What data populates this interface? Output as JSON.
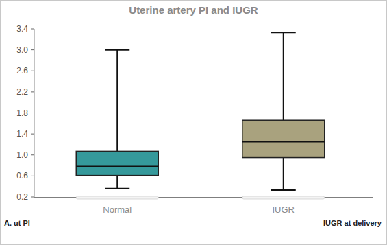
{
  "chart_data": {
    "type": "box",
    "title": "Uterine artery PI and IUGR",
    "x_label": "IUGR at delivery",
    "y_label": "A. ut PI",
    "categories": [
      "Normal",
      "IUGR"
    ],
    "boxes": [
      {
        "min": 0.36,
        "q1": 0.61,
        "median": 0.78,
        "q3": 1.07,
        "max": 3.0
      },
      {
        "min": 0.33,
        "q1": 0.95,
        "median": 1.25,
        "q3": 1.66,
        "max": 3.33
      }
    ],
    "colors": [
      "#35999b",
      "#a9a27e"
    ],
    "ylim": [
      0.2,
      3.4
    ],
    "yticks": [
      0.2,
      0.6,
      {
        "value": 1,
        "label": "1.0"
      },
      1.4,
      1.8,
      2.2,
      2.6,
      {
        "value": 3,
        "label": "3.0"
      },
      3.4
    ],
    "grid": false
  }
}
